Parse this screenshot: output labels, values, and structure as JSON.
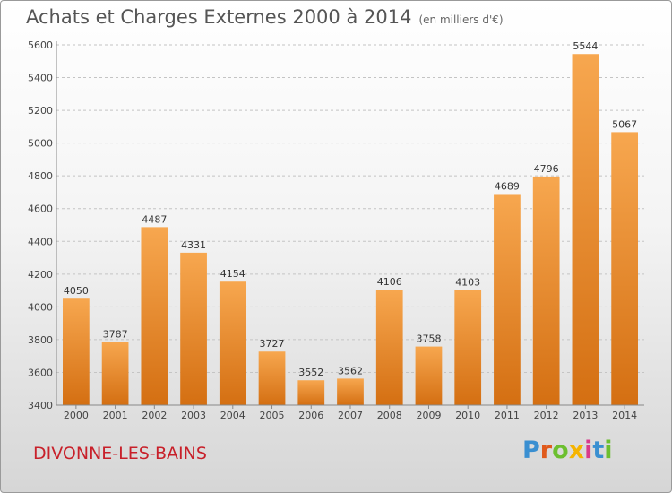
{
  "title": "Achats et Charges Externes 2000 à 2014",
  "unit": "(en milliers d'€)",
  "place": "DIVONNE-LES-BAINS",
  "logo": {
    "text": "Proxiti",
    "letter_colors": [
      "#3a8fd1",
      "#e05a1c",
      "#6cbf2f",
      "#f5b400",
      "#d93a8c",
      "#3a8fd1",
      "#6cbf2f"
    ]
  },
  "chart_data": {
    "type": "bar",
    "title": "Achats et Charges Externes 2000 à 2014",
    "subtitle": "(en milliers d'€)",
    "categories": [
      "2000",
      "2001",
      "2002",
      "2003",
      "2004",
      "2005",
      "2006",
      "2007",
      "2008",
      "2009",
      "2010",
      "2011",
      "2012",
      "2013",
      "2014"
    ],
    "values": [
      4050,
      3787,
      4487,
      4331,
      4154,
      3727,
      3552,
      3562,
      4106,
      3758,
      4103,
      4689,
      4796,
      5544,
      5067
    ],
    "ylim": [
      3400,
      5600
    ],
    "yticks": [
      3400,
      3600,
      3800,
      4000,
      4200,
      4400,
      4600,
      4800,
      5000,
      5200,
      5400,
      5600
    ],
    "grid": true,
    "bar_color": "#f0922e",
    "data_labels": true
  }
}
